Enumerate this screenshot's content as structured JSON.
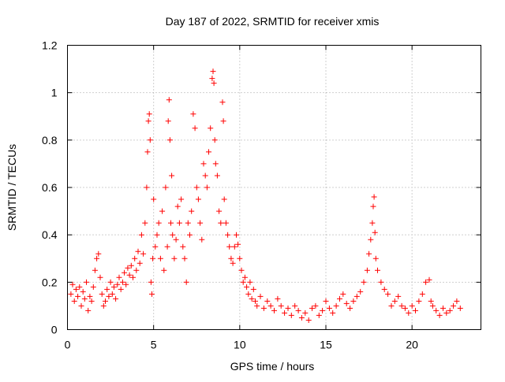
{
  "chart_data": {
    "type": "scatter",
    "title": "Day 187 of 2022, SRMTID for receiver xmis",
    "xlabel": "GPS time / hours",
    "ylabel": "SRMTID / TECUs",
    "xlim": [
      0,
      24
    ],
    "ylim": [
      0,
      1.2
    ],
    "xticks": [
      0,
      5,
      10,
      15,
      20
    ],
    "xtick_labels": [
      "0",
      "5",
      "10",
      "15",
      "20"
    ],
    "yticks": [
      0,
      0.2,
      0.4,
      0.6,
      0.8,
      1,
      1.2
    ],
    "ytick_labels": [
      "0",
      "0.2",
      "0.4",
      "0.6",
      "0.8",
      "1",
      "1.2"
    ],
    "grid": true,
    "marker": "+",
    "color": "#ff0000",
    "series": [
      {
        "name": "SRMTID",
        "x": [
          0.2,
          0.3,
          0.4,
          0.5,
          0.6,
          0.7,
          0.8,
          0.9,
          1.0,
          1.1,
          1.2,
          1.3,
          1.4,
          1.5,
          1.6,
          1.7,
          1.8,
          1.9,
          2.0,
          2.1,
          2.2,
          2.3,
          2.4,
          2.5,
          2.6,
          2.7,
          2.8,
          2.9,
          3.0,
          3.1,
          3.2,
          3.3,
          3.4,
          3.5,
          3.6,
          3.7,
          3.8,
          3.9,
          4.0,
          4.1,
          4.2,
          4.3,
          4.4,
          4.5,
          4.6,
          4.65,
          4.7,
          4.75,
          4.8,
          4.85,
          4.9,
          4.95,
          5.0,
          5.1,
          5.2,
          5.3,
          5.4,
          5.5,
          5.6,
          5.7,
          5.8,
          5.85,
          5.9,
          5.95,
          6.0,
          6.05,
          6.1,
          6.2,
          6.3,
          6.4,
          6.5,
          6.6,
          6.7,
          6.8,
          6.9,
          7.0,
          7.1,
          7.2,
          7.3,
          7.4,
          7.5,
          7.6,
          7.7,
          7.8,
          7.9,
          8.0,
          8.1,
          8.2,
          8.3,
          8.4,
          8.45,
          8.5,
          8.55,
          8.6,
          8.7,
          8.8,
          8.9,
          9.0,
          9.05,
          9.1,
          9.2,
          9.3,
          9.4,
          9.5,
          9.6,
          9.7,
          9.8,
          9.9,
          10.0,
          10.1,
          10.2,
          10.3,
          10.4,
          10.5,
          10.6,
          10.7,
          10.8,
          10.9,
          11.0,
          11.2,
          11.4,
          11.6,
          11.8,
          12.0,
          12.2,
          12.4,
          12.6,
          12.8,
          13.0,
          13.2,
          13.4,
          13.6,
          13.8,
          14.0,
          14.2,
          14.4,
          14.6,
          14.8,
          15.0,
          15.2,
          15.4,
          15.6,
          15.8,
          16.0,
          16.2,
          16.4,
          16.6,
          16.8,
          17.0,
          17.2,
          17.4,
          17.5,
          17.6,
          17.7,
          17.75,
          17.8,
          17.85,
          17.9,
          18.0,
          18.2,
          18.4,
          18.6,
          18.8,
          19.0,
          19.2,
          19.4,
          19.6,
          19.8,
          20.0,
          20.2,
          20.4,
          20.6,
          20.8,
          21.0,
          21.1,
          21.2,
          21.4,
          21.6,
          21.8,
          22.0,
          22.2,
          22.4,
          22.6,
          22.8
        ],
        "y": [
          0.15,
          0.19,
          0.12,
          0.17,
          0.14,
          0.18,
          0.1,
          0.16,
          0.13,
          0.2,
          0.08,
          0.14,
          0.12,
          0.18,
          0.25,
          0.3,
          0.32,
          0.22,
          0.15,
          0.1,
          0.12,
          0.17,
          0.14,
          0.2,
          0.15,
          0.18,
          0.13,
          0.19,
          0.22,
          0.17,
          0.2,
          0.24,
          0.19,
          0.26,
          0.23,
          0.27,
          0.22,
          0.3,
          0.25,
          0.33,
          0.28,
          0.4,
          0.32,
          0.45,
          0.6,
          0.75,
          0.88,
          0.91,
          0.8,
          0.2,
          0.15,
          0.3,
          0.55,
          0.35,
          0.4,
          0.45,
          0.3,
          0.5,
          0.25,
          0.6,
          0.35,
          0.88,
          0.97,
          0.8,
          0.45,
          0.65,
          0.4,
          0.3,
          0.38,
          0.52,
          0.45,
          0.55,
          0.35,
          0.3,
          0.2,
          0.45,
          0.4,
          0.5,
          0.91,
          0.85,
          0.6,
          0.55,
          0.45,
          0.38,
          0.7,
          0.65,
          0.6,
          0.75,
          0.85,
          1.06,
          1.09,
          1.04,
          0.8,
          0.7,
          0.65,
          0.5,
          0.45,
          0.96,
          0.88,
          0.55,
          0.45,
          0.4,
          0.35,
          0.3,
          0.28,
          0.35,
          0.4,
          0.36,
          0.3,
          0.25,
          0.2,
          0.22,
          0.18,
          0.15,
          0.2,
          0.13,
          0.17,
          0.12,
          0.1,
          0.14,
          0.09,
          0.12,
          0.1,
          0.08,
          0.13,
          0.1,
          0.07,
          0.09,
          0.06,
          0.1,
          0.08,
          0.05,
          0.07,
          0.04,
          0.09,
          0.1,
          0.06,
          0.08,
          0.12,
          0.09,
          0.07,
          0.1,
          0.13,
          0.15,
          0.11,
          0.09,
          0.12,
          0.14,
          0.16,
          0.2,
          0.25,
          0.32,
          0.38,
          0.45,
          0.52,
          0.56,
          0.41,
          0.3,
          0.25,
          0.2,
          0.17,
          0.15,
          0.1,
          0.12,
          0.14,
          0.1,
          0.09,
          0.07,
          0.1,
          0.08,
          0.12,
          0.15,
          0.2,
          0.21,
          0.12,
          0.1,
          0.08,
          0.06,
          0.09,
          0.07,
          0.08,
          0.1,
          0.12,
          0.09
        ]
      }
    ]
  }
}
